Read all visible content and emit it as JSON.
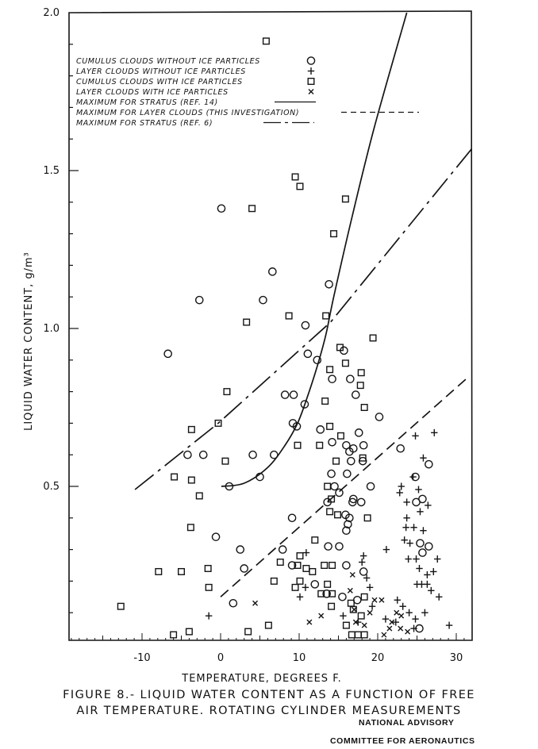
{
  "figure": {
    "caption_line1": "FIGURE 8.- LIQUID WATER CONTENT AS A FUNCTION OF FREE",
    "caption_line2": "AIR TEMPERATURE. ROTATING CYLINDER MEASUREMENTS",
    "stamp_line1": "NATIONAL ADVISORY",
    "stamp_line2": "COMMITTEE FOR AERONAUTICS"
  },
  "chart_data": {
    "type": "scatter",
    "title": "Liquid water content as a function of free air temperature. Rotating cylinder measurements",
    "xlabel": "TEMPERATURE, DEGREES F.",
    "ylabel": "LIQUID WATER CONTENT, g/m³",
    "xlim": [
      -19.3,
      32
    ],
    "ylim": [
      0.03,
      2.0
    ],
    "x_ticks": [
      -10,
      0,
      10,
      20,
      30
    ],
    "x_tick_labels": [
      "-10",
      "0",
      "10",
      "20",
      "30"
    ],
    "y_ticks": [
      0.5,
      1.0,
      1.5,
      2.0
    ],
    "y_tick_labels": [
      "0.5",
      "1.0",
      "1.5",
      "2.0"
    ],
    "grid": false,
    "legend_position": "upper-left",
    "series": [
      {
        "name": "CUMULUS CLOUDS WITHOUT ICE PARTICLES",
        "marker": "circle",
        "legend_symbol": "O",
        "points": [
          [
            0.1,
            1.38
          ],
          [
            6.6,
            1.18
          ],
          [
            -2.7,
            1.09
          ],
          [
            5.4,
            1.09
          ],
          [
            -6.7,
            0.92
          ],
          [
            13.8,
            1.14
          ],
          [
            10.8,
            1.01
          ],
          [
            11.1,
            0.92
          ],
          [
            15.7,
            0.93
          ],
          [
            12.3,
            0.9
          ],
          [
            14.2,
            0.84
          ],
          [
            16.5,
            0.84
          ],
          [
            17.2,
            0.79
          ],
          [
            8.2,
            0.79
          ],
          [
            9.3,
            0.79
          ],
          [
            10.7,
            0.76
          ],
          [
            20.2,
            0.72
          ],
          [
            9.2,
            0.7
          ],
          [
            9.7,
            0.69
          ],
          [
            12.7,
            0.68
          ],
          [
            17.6,
            0.67
          ],
          [
            14.2,
            0.64
          ],
          [
            16.9,
            0.62
          ],
          [
            18.2,
            0.63
          ],
          [
            22.9,
            0.62
          ],
          [
            -4.2,
            0.6
          ],
          [
            -2.2,
            0.6
          ],
          [
            4.1,
            0.6
          ],
          [
            6.8,
            0.6
          ],
          [
            5.0,
            0.53
          ],
          [
            1.1,
            0.5
          ],
          [
            16.0,
            0.63
          ],
          [
            16.6,
            0.58
          ],
          [
            16.4,
            0.61
          ],
          [
            18.1,
            0.58
          ],
          [
            14.1,
            0.54
          ],
          [
            16.1,
            0.54
          ],
          [
            19.1,
            0.5
          ],
          [
            14.5,
            0.5
          ],
          [
            15.1,
            0.48
          ],
          [
            16.9,
            0.46
          ],
          [
            16.8,
            0.45
          ],
          [
            17.9,
            0.45
          ],
          [
            13.6,
            0.45
          ],
          [
            15.9,
            0.41
          ],
          [
            16.4,
            0.4
          ],
          [
            16.2,
            0.38
          ],
          [
            16.0,
            0.36
          ],
          [
            9.1,
            0.4
          ],
          [
            13.7,
            0.31
          ],
          [
            15.1,
            0.31
          ],
          [
            7.9,
            0.3
          ],
          [
            2.5,
            0.3
          ],
          [
            -0.6,
            0.34
          ],
          [
            3.0,
            0.24
          ],
          [
            1.6,
            0.13
          ],
          [
            9.1,
            0.25
          ],
          [
            16.0,
            0.25
          ],
          [
            12.0,
            0.19
          ],
          [
            13.5,
            0.16
          ],
          [
            15.5,
            0.15
          ],
          [
            17.4,
            0.14
          ],
          [
            18.2,
            0.23
          ],
          [
            26.5,
            0.57
          ],
          [
            24.9,
            0.45
          ],
          [
            25.7,
            0.46
          ],
          [
            25.4,
            0.32
          ],
          [
            26.5,
            0.31
          ],
          [
            25.7,
            0.29
          ],
          [
            25.3,
            0.05
          ],
          [
            24.8,
            0.53
          ]
        ]
      },
      {
        "name": "LAYER CLOUDS WITHOUT ICE PARTICLES",
        "marker": "plus",
        "legend_symbol": "+",
        "points": [
          [
            24.8,
            0.66
          ],
          [
            27.2,
            0.67
          ],
          [
            25.8,
            0.59
          ],
          [
            24.5,
            0.53
          ],
          [
            23.0,
            0.5
          ],
          [
            22.8,
            0.48
          ],
          [
            25.2,
            0.49
          ],
          [
            23.7,
            0.45
          ],
          [
            26.4,
            0.44
          ],
          [
            25.4,
            0.42
          ],
          [
            23.7,
            0.4
          ],
          [
            23.6,
            0.37
          ],
          [
            24.6,
            0.37
          ],
          [
            25.8,
            0.36
          ],
          [
            23.4,
            0.33
          ],
          [
            24.1,
            0.32
          ],
          [
            21.1,
            0.3
          ],
          [
            23.9,
            0.27
          ],
          [
            24.9,
            0.27
          ],
          [
            27.6,
            0.27
          ],
          [
            25.3,
            0.24
          ],
          [
            26.3,
            0.22
          ],
          [
            27.1,
            0.23
          ],
          [
            25.0,
            0.19
          ],
          [
            25.6,
            0.19
          ],
          [
            26.3,
            0.19
          ],
          [
            26.8,
            0.17
          ],
          [
            27.8,
            0.15
          ],
          [
            29.1,
            0.06
          ],
          [
            22.5,
            0.14
          ],
          [
            23.2,
            0.12
          ],
          [
            24.0,
            0.1
          ],
          [
            24.8,
            0.08
          ],
          [
            22.3,
            0.07
          ],
          [
            21.0,
            0.08
          ],
          [
            19.3,
            0.12
          ],
          [
            18.0,
            0.26
          ],
          [
            18.2,
            0.28
          ],
          [
            10.9,
            0.29
          ],
          [
            10.8,
            0.18
          ],
          [
            10.1,
            0.15
          ],
          [
            -1.5,
            0.09
          ],
          [
            17.5,
            0.07
          ],
          [
            15.6,
            0.09
          ],
          [
            19.0,
            0.18
          ],
          [
            18.6,
            0.21
          ],
          [
            26.0,
            0.1
          ],
          [
            24.6,
            0.05
          ]
        ]
      },
      {
        "name": "CUMULUS CLOUDS WITH ICE PARTICLES",
        "marker": "square",
        "legend_symbol": "□",
        "points": [
          [
            5.8,
            1.91
          ],
          [
            9.5,
            1.48
          ],
          [
            10.1,
            1.45
          ],
          [
            15.9,
            1.41
          ],
          [
            14.4,
            1.3
          ],
          [
            4.0,
            1.38
          ],
          [
            3.3,
            1.02
          ],
          [
            8.7,
            1.04
          ],
          [
            13.4,
            1.04
          ],
          [
            19.4,
            0.97
          ],
          [
            15.2,
            0.94
          ],
          [
            15.9,
            0.89
          ],
          [
            13.9,
            0.87
          ],
          [
            17.9,
            0.86
          ],
          [
            17.8,
            0.82
          ],
          [
            13.3,
            0.77
          ],
          [
            18.3,
            0.75
          ],
          [
            0.8,
            0.8
          ],
          [
            -3.7,
            0.68
          ],
          [
            -0.3,
            0.7
          ],
          [
            13.9,
            0.69
          ],
          [
            15.3,
            0.66
          ],
          [
            9.8,
            0.63
          ],
          [
            12.6,
            0.63
          ],
          [
            0.6,
            0.58
          ],
          [
            -5.9,
            0.53
          ],
          [
            -3.7,
            0.52
          ],
          [
            -2.7,
            0.47
          ],
          [
            18.1,
            0.59
          ],
          [
            14.7,
            0.58
          ],
          [
            13.6,
            0.5
          ],
          [
            14.1,
            0.46
          ],
          [
            13.9,
            0.42
          ],
          [
            14.9,
            0.41
          ],
          [
            18.7,
            0.4
          ],
          [
            -3.8,
            0.37
          ],
          [
            12.0,
            0.33
          ],
          [
            10.1,
            0.28
          ],
          [
            7.6,
            0.26
          ],
          [
            9.8,
            0.25
          ],
          [
            10.9,
            0.24
          ],
          [
            11.7,
            0.23
          ],
          [
            13.2,
            0.25
          ],
          [
            14.2,
            0.25
          ],
          [
            -5.0,
            0.23
          ],
          [
            -7.9,
            0.23
          ],
          [
            -1.6,
            0.24
          ],
          [
            -1.5,
            0.18
          ],
          [
            6.8,
            0.2
          ],
          [
            10.1,
            0.2
          ],
          [
            9.5,
            0.18
          ],
          [
            13.6,
            0.19
          ],
          [
            12.8,
            0.16
          ],
          [
            14.2,
            0.16
          ],
          [
            18.3,
            0.15
          ],
          [
            16.6,
            0.13
          ],
          [
            14.1,
            0.12
          ],
          [
            16.9,
            0.11
          ],
          [
            17.9,
            0.09
          ],
          [
            16.0,
            0.06
          ],
          [
            16.7,
            0.03
          ],
          [
            -12.7,
            0.12
          ],
          [
            -6.0,
            0.03
          ],
          [
            -4.0,
            0.04
          ],
          [
            3.5,
            0.04
          ],
          [
            6.1,
            0.06
          ],
          [
            17.5,
            0.03
          ],
          [
            18.3,
            0.03
          ]
        ]
      },
      {
        "name": "LAYER CLOUDS WITH ICE PARTICLES",
        "marker": "x",
        "legend_symbol": "×",
        "points": [
          [
            4.4,
            0.13
          ],
          [
            11.3,
            0.07
          ],
          [
            12.8,
            0.09
          ],
          [
            16.8,
            0.22
          ],
          [
            16.5,
            0.17
          ],
          [
            19.6,
            0.14
          ],
          [
            20.5,
            0.14
          ],
          [
            17.0,
            0.11
          ],
          [
            19.0,
            0.1
          ],
          [
            18.3,
            0.06
          ],
          [
            21.5,
            0.05
          ],
          [
            21.8,
            0.07
          ],
          [
            22.4,
            0.1
          ],
          [
            22.9,
            0.05
          ],
          [
            23.8,
            0.04
          ],
          [
            20.8,
            0.03
          ],
          [
            23.0,
            0.09
          ],
          [
            17.2,
            0.07
          ]
        ]
      }
    ],
    "lines": [
      {
        "name": "MAXIMUM FOR STRATUS (REF. 14)",
        "style": "solid",
        "points": [
          [
            0.1,
            0.5
          ],
          [
            3.0,
            0.51
          ],
          [
            6.0,
            0.56
          ],
          [
            8.2,
            0.63
          ],
          [
            9.8,
            0.7
          ],
          [
            11.0,
            0.78
          ],
          [
            12.3,
            0.88
          ],
          [
            13.4,
            0.98
          ],
          [
            14.4,
            1.1
          ],
          [
            16.8,
            1.36
          ],
          [
            19.6,
            1.64
          ],
          [
            23.7,
            2.0
          ]
        ]
      },
      {
        "name": "MAXIMUM FOR LAYER CLOUDS (THIS INVESTIGATION)",
        "style": "dashed",
        "points": [
          [
            0.0,
            0.15
          ],
          [
            31.7,
            0.85
          ]
        ]
      },
      {
        "name": "MAXIMUM FOR STRATUS (REF. 6)",
        "style": "dash-dot",
        "points": [
          [
            -10.9,
            0.49
          ],
          [
            -0.3,
            0.7
          ],
          [
            14.0,
            1.02
          ],
          [
            32.0,
            1.57
          ]
        ]
      }
    ],
    "annotations": []
  }
}
